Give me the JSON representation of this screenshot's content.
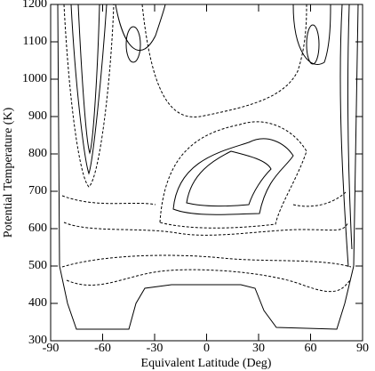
{
  "chart_data": {
    "type": "contour",
    "x_label": "Equivalent Latitude (Deg)",
    "y_label": "Potential Temperature (K)",
    "xlim": [
      -90,
      90
    ],
    "ylim": [
      300,
      1200
    ],
    "xticks": [
      -90,
      -60,
      -30,
      0,
      30,
      60,
      90
    ],
    "yticks": [
      300,
      400,
      500,
      600,
      700,
      800,
      900,
      1000,
      1100,
      1200
    ]
  }
}
